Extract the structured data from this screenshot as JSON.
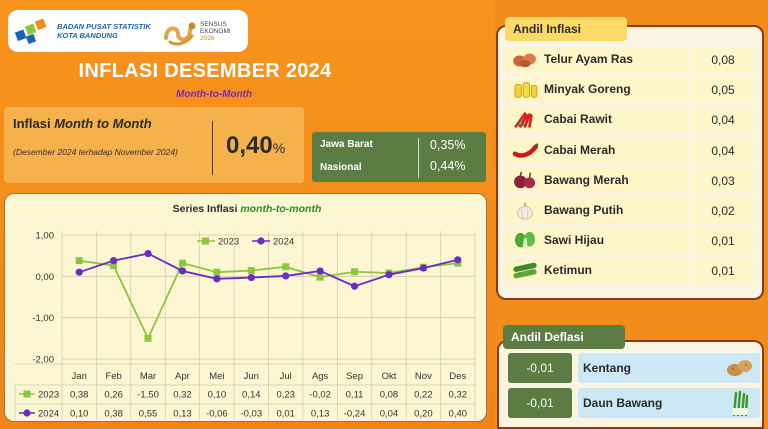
{
  "header": {
    "org_line1": "BADAN PUSAT STATISTIK",
    "org_line2": "KOTA BANDUNG",
    "sensus_line1": "SENSUS",
    "sensus_line2": "EKONOMI",
    "sensus_line3": "2026",
    "title": "INFLASI DESEMBER 2024",
    "subtitle": "Month-to-Month"
  },
  "mtm": {
    "label_prefix": "Inflasi ",
    "label_em": "Month to Month",
    "note": "(Desember 2024 terhadap November 2024)",
    "value": "0,40",
    "unit": "%"
  },
  "regions": [
    {
      "name": "Jawa Barat",
      "value": "0,35%"
    },
    {
      "name": "Nasional",
      "value": "0,44%"
    }
  ],
  "andil_inflasi": {
    "title": "Andil Inflasi",
    "items": [
      {
        "name": "Telur Ayam Ras",
        "value": "0,08",
        "icon": "eggs-icon"
      },
      {
        "name": "Minyak Goreng",
        "value": "0,05",
        "icon": "cooking-oil-icon"
      },
      {
        "name": "Cabai Rawit",
        "value": "0,04",
        "icon": "bird-chili-icon"
      },
      {
        "name": "Cabai Merah",
        "value": "0,04",
        "icon": "red-chili-icon"
      },
      {
        "name": "Bawang Merah",
        "value": "0,03",
        "icon": "shallot-icon"
      },
      {
        "name": "Bawang Putih",
        "value": "0,02",
        "icon": "garlic-icon"
      },
      {
        "name": "Sawi Hijau",
        "value": "0,01",
        "icon": "mustard-greens-icon"
      },
      {
        "name": "Ketimun",
        "value": "0,01",
        "icon": "cucumber-icon"
      }
    ]
  },
  "andil_deflasi": {
    "title": "Andil Deflasi",
    "items": [
      {
        "name": "Kentang",
        "value": "-0,01",
        "icon": "potato-icon"
      },
      {
        "name": "Daun Bawang",
        "value": "-0,01",
        "icon": "scallion-icon"
      }
    ]
  },
  "chart_data": {
    "type": "line",
    "title_prefix": "Series Inflasi ",
    "title_em": "month-to-month",
    "categories": [
      "Jan",
      "Feb",
      "Mar",
      "Apr",
      "Mei",
      "Jun",
      "Jul",
      "Ags",
      "Sep",
      "Okt",
      "Nov",
      "Des"
    ],
    "series": [
      {
        "name": "2023",
        "color": "#8dc63f",
        "marker": "square",
        "values": [
          0.38,
          0.26,
          -1.5,
          0.32,
          0.1,
          0.14,
          0.23,
          -0.02,
          0.11,
          0.08,
          0.22,
          0.32
        ],
        "labels": [
          "0,38",
          "0,26",
          "-1,50",
          "0,32",
          "0,10",
          "0,14",
          "0,23",
          "-0,02",
          "0,11",
          "0,08",
          "0,22",
          "0,32"
        ]
      },
      {
        "name": "2024",
        "color": "#6a2dc4",
        "marker": "circle",
        "values": [
          0.1,
          0.38,
          0.55,
          0.13,
          -0.06,
          -0.03,
          0.01,
          0.13,
          -0.24,
          0.04,
          0.2,
          0.4
        ],
        "labels": [
          "0,10",
          "0,38",
          "0,55",
          "0,13",
          "-0,06",
          "-0,03",
          "0,01",
          "0,13",
          "-0,24",
          "0,04",
          "0,20",
          "0,40"
        ]
      }
    ],
    "yticks": [
      1.0,
      0.0,
      -1.0,
      -2.0
    ],
    "ytick_labels": [
      "1,00",
      "0,00",
      "-1,00",
      "-2,00"
    ],
    "ylim": [
      -2.0,
      1.0
    ],
    "grid": true,
    "legend": "top-center",
    "data_table": true
  }
}
